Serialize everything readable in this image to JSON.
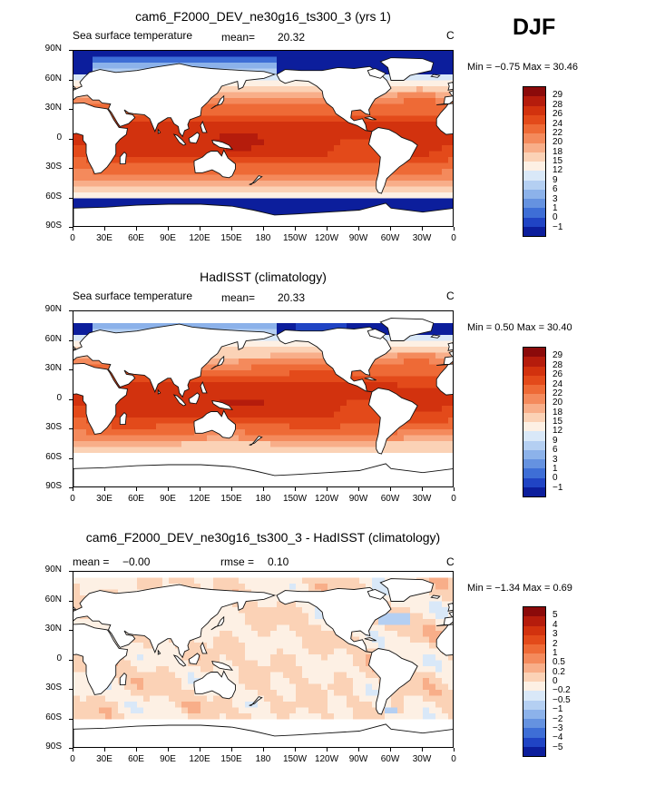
{
  "season": "DJF",
  "colors": {
    "land": "#ffffff",
    "coast": "#111111"
  },
  "panels": [
    {
      "title": "cam6_F2000_DEV_ne30g16_ts300_3 (yrs 1)",
      "left_label": "Sea surface temperature",
      "mean_label": "mean=",
      "mean_value": "20.32",
      "rmse_label": "",
      "rmse_value": "",
      "units": "C",
      "min_max": "Min =  −0.75  Max =  30.46",
      "field": "sst_model",
      "colorbar_labels": [
        "29",
        "28",
        "26",
        "24",
        "22",
        "20",
        "18",
        "15",
        "12",
        "9",
        "6",
        "3",
        "1",
        "0",
        "−1"
      ],
      "colorbar_colors": [
        "#8b0a0a",
        "#b51c0c",
        "#d2320e",
        "#e34a1a",
        "#ee6a36",
        "#f48a5c",
        "#f8ae89",
        "#fbd2b6",
        "#fdf0e4",
        "#d9e8f8",
        "#b4cff2",
        "#8cb2ea",
        "#6592e0",
        "#3e6ed6",
        "#2044c4",
        "#0c1e9c"
      ]
    },
    {
      "title": "HadISST (climatology)",
      "left_label": "Sea surface temperature",
      "mean_label": "mean=",
      "mean_value": "20.33",
      "rmse_label": "",
      "rmse_value": "",
      "units": "C",
      "min_max": "Min =   0.50  Max =  30.40",
      "field": "sst_obs",
      "colorbar_labels": [
        "29",
        "28",
        "26",
        "24",
        "22",
        "20",
        "18",
        "15",
        "12",
        "9",
        "6",
        "3",
        "1",
        "0",
        "−1"
      ],
      "colorbar_colors": [
        "#8b0a0a",
        "#b51c0c",
        "#d2320e",
        "#e34a1a",
        "#ee6a36",
        "#f48a5c",
        "#f8ae89",
        "#fbd2b6",
        "#fdf0e4",
        "#d9e8f8",
        "#b4cff2",
        "#8cb2ea",
        "#6592e0",
        "#3e6ed6",
        "#2044c4",
        "#0c1e9c"
      ]
    },
    {
      "title": "cam6_F2000_DEV_ne30g16_ts300_3 - HadISST (climatology)",
      "left_label": "",
      "mean_label": "mean =",
      "mean_value": "−0.00",
      "rmse_label": "rmse =",
      "rmse_value": "0.10",
      "units": "C",
      "min_max": "Min =  −1.34  Max =   0.69",
      "field": "diff",
      "colorbar_labels": [
        "5",
        "4",
        "3",
        "2",
        "1",
        "0.5",
        "0.2",
        "0",
        "−0.2",
        "−0.5",
        "−1",
        "−2",
        "−3",
        "−4",
        "−5"
      ],
      "colorbar_colors": [
        "#8b0a0a",
        "#b51c0c",
        "#d2320e",
        "#e34a1a",
        "#ee6a36",
        "#f48a5c",
        "#f8ae89",
        "#fbd2b6",
        "#fdf0e4",
        "#d9e8f8",
        "#b4cff2",
        "#8cb2ea",
        "#6592e0",
        "#3e6ed6",
        "#2044c4",
        "#0c1e9c"
      ]
    }
  ],
  "lat_labels": [
    "90N",
    "60N",
    "30N",
    "0",
    "30S",
    "60S",
    "90S"
  ],
  "lon_labels": [
    "0",
    "30E",
    "60E",
    "90E",
    "120E",
    "150E",
    "180",
    "150W",
    "120W",
    "90W",
    "60W",
    "30W",
    "0"
  ]
}
